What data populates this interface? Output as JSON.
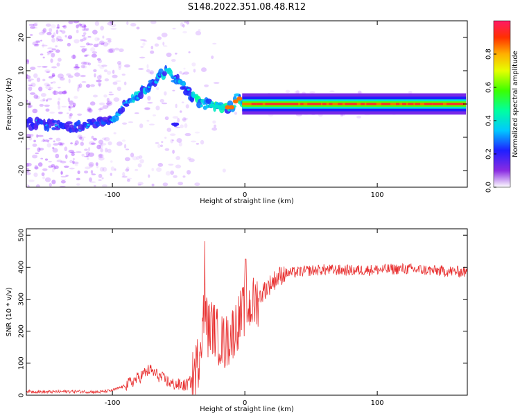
{
  "title": "S148.2022.351.08.48.R12",
  "chart_data": [
    {
      "type": "heatmap",
      "xlabel": "Height of straight line (km)",
      "ylabel": "Frequency (Hz)",
      "xlim": [
        -165,
        168
      ],
      "ylim": [
        -25,
        25
      ],
      "xticks": [
        -100,
        0,
        100
      ],
      "yticks": [
        -20,
        -10,
        0,
        10,
        20
      ],
      "colorbar": {
        "label": "Normalized spectral amplitude",
        "range": [
          0,
          1
        ],
        "ticks": [
          0.0,
          0.2,
          0.4,
          0.6,
          0.8
        ]
      },
      "ridge": [
        {
          "x": -150,
          "f": -6
        },
        {
          "x": -130,
          "f": -7
        },
        {
          "x": -115,
          "f": -6
        },
        {
          "x": -100,
          "f": -5
        },
        {
          "x": -90,
          "f": 0
        },
        {
          "x": -80,
          "f": 3
        },
        {
          "x": -70,
          "f": 6
        },
        {
          "x": -60,
          "f": 10
        },
        {
          "x": -50,
          "f": 7
        },
        {
          "x": -40,
          "f": 2
        },
        {
          "x": -30,
          "f": 0
        },
        {
          "x": -20,
          "f": -1
        },
        {
          "x": -10,
          "f": -1
        },
        {
          "x": -5,
          "f": 2
        },
        {
          "x": 0,
          "f": 0
        },
        {
          "x": 50,
          "f": 0
        },
        {
          "x": 100,
          "f": 0
        },
        {
          "x": 167,
          "f": 0
        }
      ]
    },
    {
      "type": "line",
      "xlabel": "Height of straight line (km)",
      "ylabel": "SNR (10 * v/v)",
      "xlim": [
        -165,
        168
      ],
      "ylim": [
        0,
        520
      ],
      "xticks": [
        -100,
        0,
        100
      ],
      "yticks": [
        0,
        100,
        200,
        300,
        400,
        500
      ],
      "series": [
        {
          "color": "#e83030",
          "x": [
            -165,
            -150,
            -130,
            -110,
            -100,
            -90,
            -80,
            -72,
            -65,
            -55,
            -45,
            -40,
            -35,
            -32,
            -30,
            -28,
            -25,
            -20,
            -15,
            -10,
            -5,
            0,
            5,
            10,
            15,
            20,
            25,
            30,
            40,
            50,
            60,
            80,
            100,
            120,
            140,
            167
          ],
          "y": [
            12,
            10,
            12,
            10,
            15,
            30,
            55,
            80,
            60,
            35,
            30,
            45,
            110,
            230,
            290,
            200,
            220,
            180,
            160,
            190,
            230,
            270,
            280,
            300,
            330,
            350,
            370,
            380,
            385,
            390,
            392,
            390,
            392,
            395,
            390,
            385
          ]
        }
      ]
    }
  ]
}
